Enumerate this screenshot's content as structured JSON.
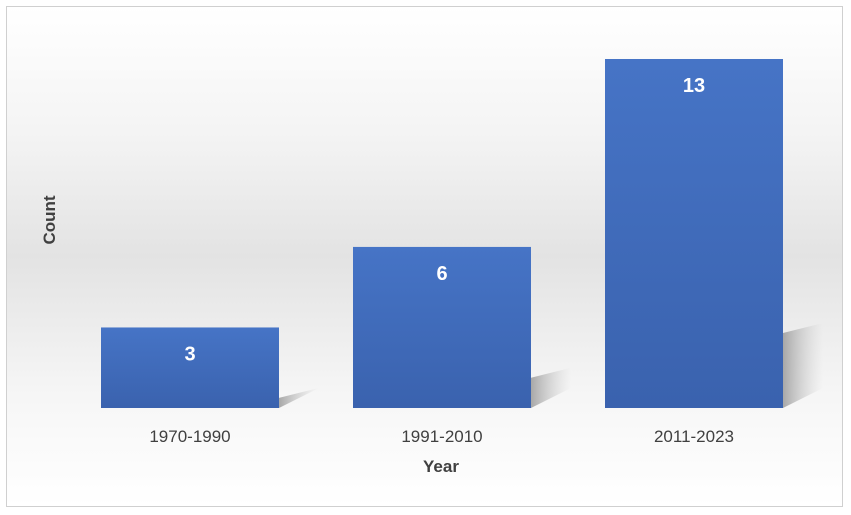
{
  "chart_data": {
    "type": "bar",
    "categories": [
      "1970-1990",
      "1991-2010",
      "2011-2023"
    ],
    "values": [
      3,
      6,
      13
    ],
    "xlabel": "Year",
    "ylabel": "Count",
    "ylim": [
      0,
      13.7
    ],
    "grid": false,
    "legend": "none",
    "bar_color": "#4472C4"
  }
}
